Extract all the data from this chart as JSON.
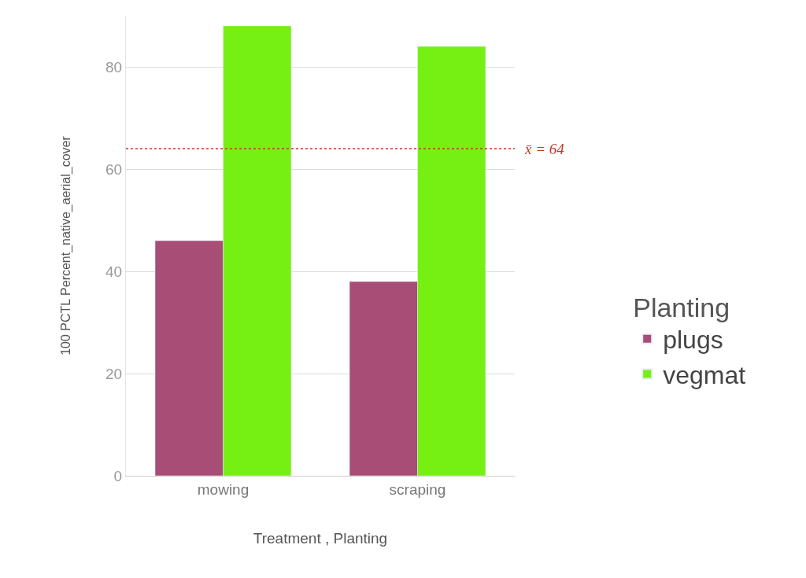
{
  "chart_data": {
    "type": "bar",
    "xlabel": "Treatment , Planting",
    "ylabel": "100 PCTL Percent_native_aerial_cover",
    "legend_title": "Planting",
    "categories": [
      "mowing",
      "scraping"
    ],
    "series": [
      {
        "name": "plugs",
        "color": "#a84d76",
        "values": [
          46,
          38
        ]
      },
      {
        "name": "vegmat",
        "color": "#76f013",
        "values": [
          88,
          84
        ]
      }
    ],
    "ylim": [
      0,
      90
    ],
    "yticks": [
      0,
      20,
      40,
      60,
      80
    ],
    "grid": "y",
    "legend": "right",
    "ref_lines": [
      {
        "axis": "y",
        "value": 64,
        "label": "x̄ = 64",
        "color": "#c0392b",
        "line_style": "dotted"
      }
    ]
  }
}
